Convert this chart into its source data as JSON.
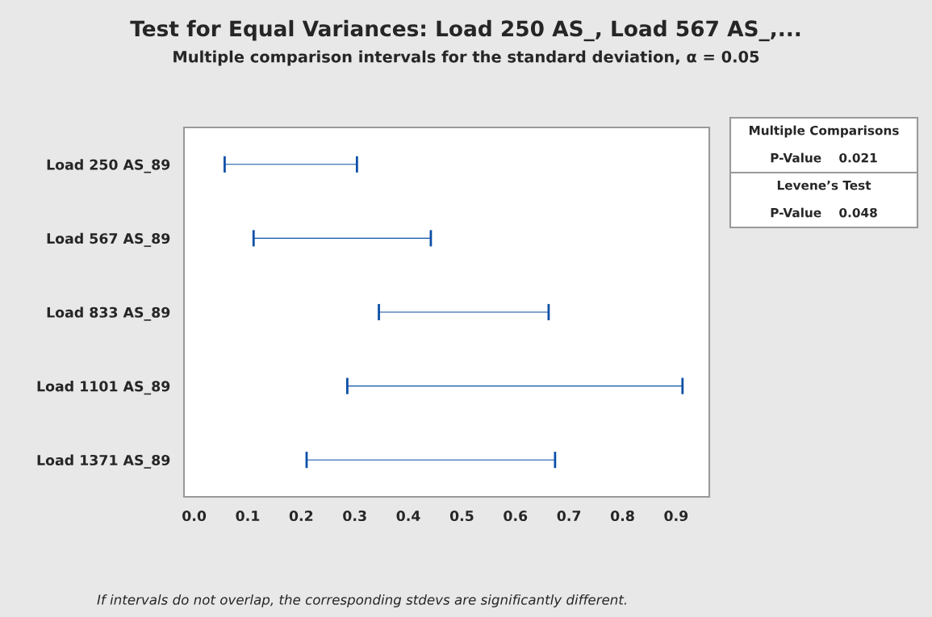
{
  "chart_data": {
    "type": "bar",
    "orientation": "horizontal",
    "title": "Test for Equal Variances: Load 250 AS_, Load 567 AS_,...",
    "subtitle": "Multiple comparison intervals for the standard deviation, α = 0.05",
    "categories": [
      "Load 250 AS_89",
      "Load 567 AS_89",
      "Load 833 AS_89",
      "Load 1101 AS_89",
      "Load 1371 AS_89"
    ],
    "base": [
      0.057,
      0.111,
      0.345,
      0.286,
      0.21
    ],
    "values": [
      0.247,
      0.331,
      0.317,
      0.626,
      0.464
    ],
    "color": "#0a4fa6",
    "xlim": [
      -0.019,
      0.962
    ],
    "xticks": [
      {
        "value": 0,
        "label": "0.0"
      },
      0.1,
      0.2,
      0.3,
      0.4,
      0.5,
      0.6,
      0.7,
      0.8,
      0.9
    ],
    "grid": false,
    "annotations": [
      "Multiple Comparisons",
      "P-Value    0.021",
      "Levene’s Test",
      "P-Value    0.048",
      "If intervals do not overlap, the corresponding stdevs are significantly different."
    ]
  }
}
